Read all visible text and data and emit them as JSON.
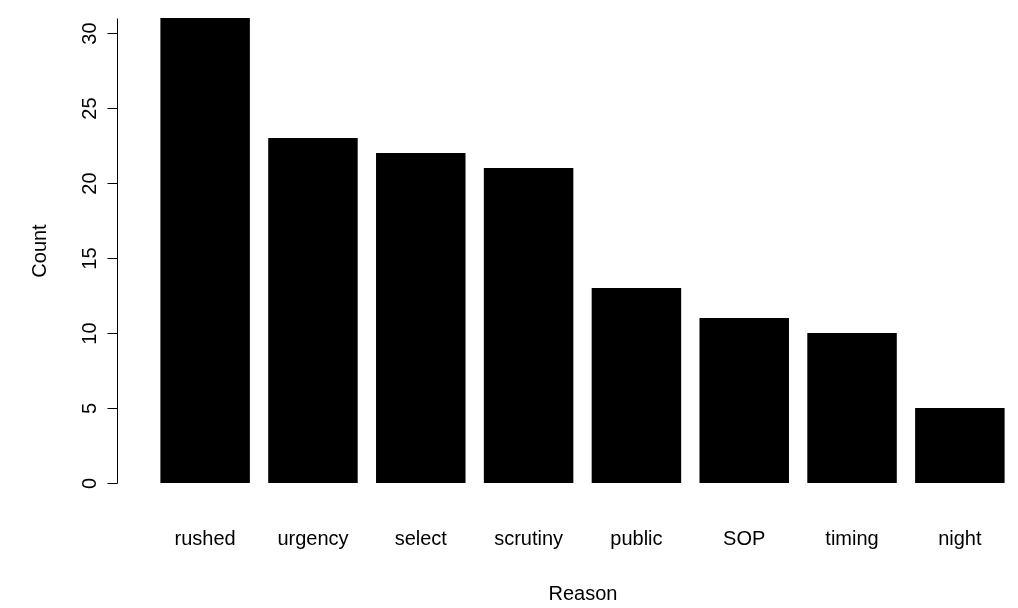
{
  "chart_data": {
    "type": "bar",
    "xlabel": "Reason",
    "ylabel": "Count",
    "categories": [
      "rushed",
      "urgency",
      "select",
      "scrutiny",
      "public",
      "SOP",
      "timing",
      "night"
    ],
    "values": [
      31,
      23,
      22,
      21,
      13,
      11,
      10,
      5
    ],
    "color": "#000000",
    "ylim": [
      0,
      31
    ],
    "yticks": [
      0,
      5,
      10,
      15,
      20,
      25,
      30
    ],
    "grid": false
  }
}
